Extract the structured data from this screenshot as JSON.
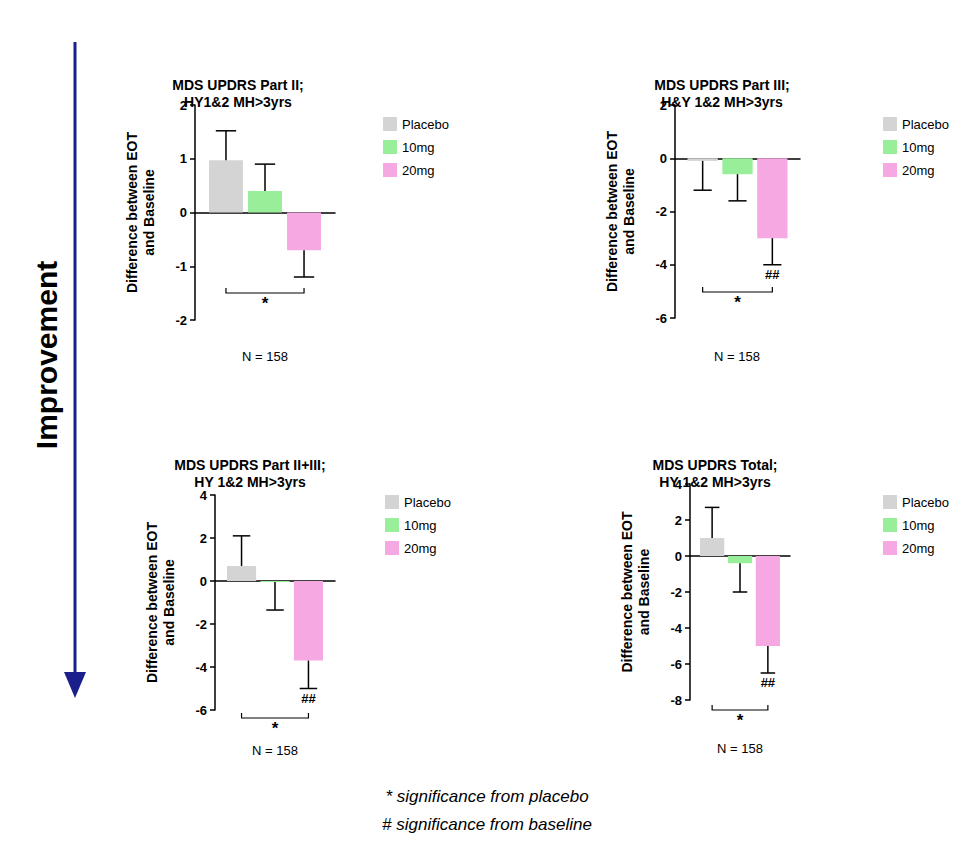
{
  "arrow_label": "Improvement",
  "footnotes": [
    "* significance from placebo",
    "# significance from baseline"
  ],
  "chart_data": [
    {
      "type": "bar",
      "title": "MDS UPDRS Part II;\nHY1&2 MH>3yrs",
      "ylabel": "Difference between EOT\nand Baseline",
      "xlabel": "N = 158",
      "categories": [
        null
      ],
      "series": [
        {
          "name": "Placebo",
          "color": "#d4d4d4",
          "values": [
            0.97
          ],
          "errors": [
            0.55
          ]
        },
        {
          "name": "10mg",
          "color": "#99ee99",
          "values": [
            0.4
          ],
          "errors": [
            0.5
          ]
        },
        {
          "name": "20mg",
          "color": "#f5a8e2",
          "values": [
            -0.7
          ],
          "errors": [
            0.5
          ]
        }
      ],
      "ylim": [
        -2,
        2
      ],
      "yticks": [
        -2,
        -1,
        0,
        1,
        2
      ],
      "grid": false,
      "legend": "right",
      "tick_labels": "y",
      "comparisons": [
        {
          "from": "Placebo",
          "to": "20mg",
          "label": "*"
        }
      ],
      "markers": []
    },
    {
      "type": "bar",
      "title": "MDS UPDRS Part III;\nH&Y 1&2 MH>3yrs",
      "ylabel": "Difference between EOT\nand Baseline",
      "xlabel": "N = 158",
      "categories": [
        null
      ],
      "series": [
        {
          "name": "Placebo",
          "color": "#d4d4d4",
          "values": [
            -0.1
          ],
          "errors": [
            1.1
          ]
        },
        {
          "name": "10mg",
          "color": "#99ee99",
          "values": [
            -0.6
          ],
          "errors": [
            1.0
          ]
        },
        {
          "name": "20mg",
          "color": "#f5a8e2",
          "values": [
            -3.0
          ],
          "errors": [
            1.0
          ]
        }
      ],
      "ylim": [
        -6,
        2
      ],
      "yticks": [
        -6,
        -4,
        -2,
        0,
        2
      ],
      "grid": false,
      "legend": "right",
      "tick_labels": "y",
      "comparisons": [
        {
          "from": "Placebo",
          "to": "20mg",
          "label": "*"
        }
      ],
      "markers": [
        {
          "series": "20mg",
          "label": "##"
        }
      ]
    },
    {
      "type": "bar",
      "title": "MDS UPDRS Part II+III;\nHY 1&2 MH>3yrs",
      "ylabel": "Difference between EOT\nand Baseline",
      "xlabel": "N = 158",
      "categories": [
        null
      ],
      "series": [
        {
          "name": "Placebo",
          "color": "#d4d4d4",
          "values": [
            0.7
          ],
          "errors": [
            1.4
          ]
        },
        {
          "name": "10mg",
          "color": "#99ee99",
          "values": [
            -0.05
          ],
          "errors": [
            1.3
          ]
        },
        {
          "name": "20mg",
          "color": "#f5a8e2",
          "values": [
            -3.7
          ],
          "errors": [
            1.3
          ]
        }
      ],
      "ylim": [
        -6,
        4
      ],
      "yticks": [
        -6,
        -4,
        -2,
        0,
        2,
        4
      ],
      "grid": false,
      "legend": "right",
      "tick_labels": "y",
      "comparisons": [
        {
          "from": "Placebo",
          "to": "20mg",
          "label": "*"
        }
      ],
      "markers": [
        {
          "series": "20mg",
          "label": "##"
        }
      ]
    },
    {
      "type": "bar",
      "title": "MDS UPDRS Total;\nHY 1&2 MH>3yrs",
      "ylabel": "Difference between EOT\nand Baseline",
      "xlabel": "N = 158",
      "categories": [
        null
      ],
      "series": [
        {
          "name": "Placebo",
          "color": "#d4d4d4",
          "values": [
            1.0
          ],
          "errors": [
            1.7
          ]
        },
        {
          "name": "10mg",
          "color": "#99ee99",
          "values": [
            -0.4
          ],
          "errors": [
            1.6
          ]
        },
        {
          "name": "20mg",
          "color": "#f5a8e2",
          "values": [
            -5.0
          ],
          "errors": [
            1.5
          ]
        }
      ],
      "ylim": [
        -8,
        4
      ],
      "yticks": [
        -8,
        -6,
        -4,
        -2,
        0,
        2,
        4
      ],
      "grid": false,
      "legend": "right",
      "tick_labels": "y",
      "comparisons": [
        {
          "from": "Placebo",
          "to": "20mg",
          "label": "*"
        }
      ],
      "markers": [
        {
          "series": "20mg",
          "label": "##"
        }
      ]
    }
  ]
}
